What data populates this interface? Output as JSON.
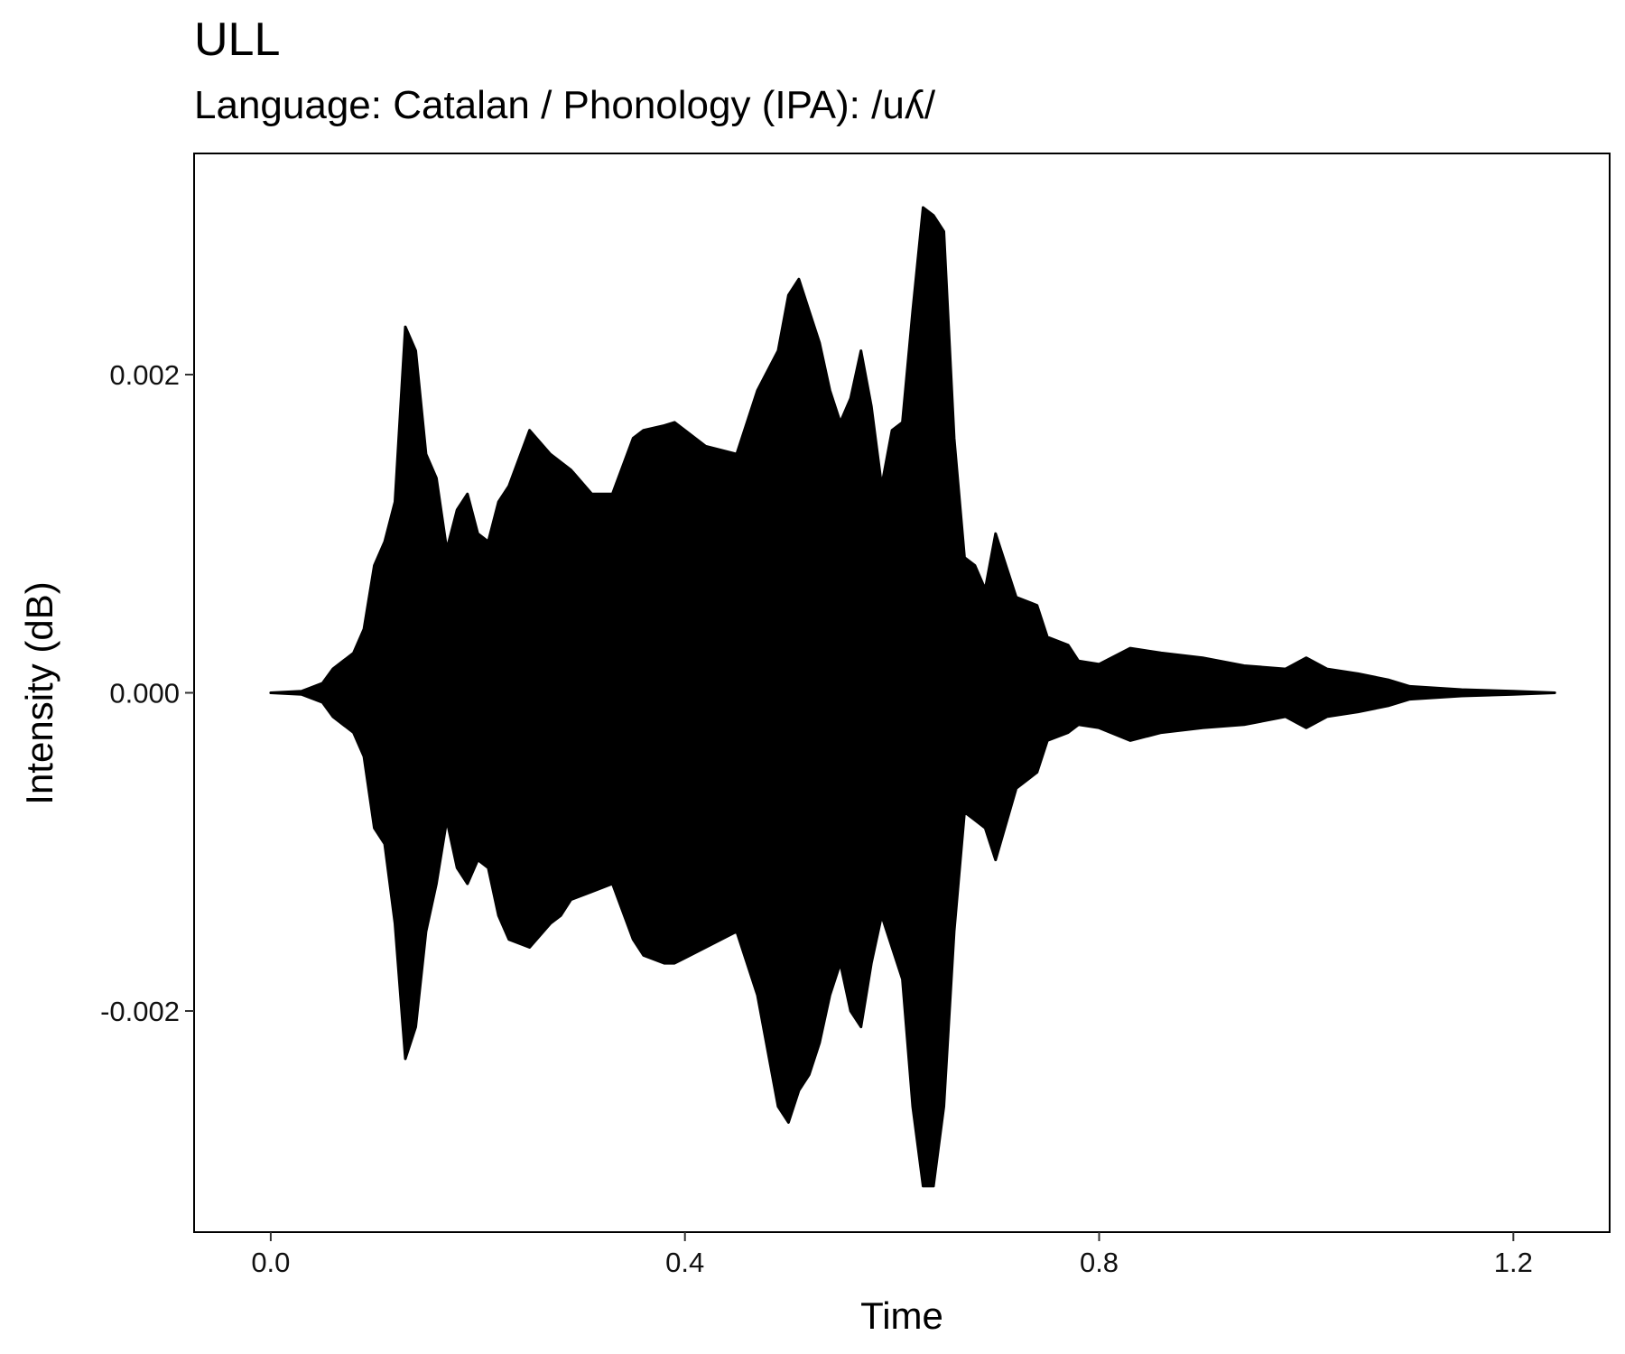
{
  "chart_data": {
    "type": "area",
    "title": "ULL",
    "subtitle": "Language: Catalan / Phonology (IPA): /uʎ/",
    "xlabel": "Time",
    "ylabel": "Intensity (dB)",
    "xlim": [
      -0.074,
      1.293
    ],
    "ylim": [
      -0.00339,
      0.00339
    ],
    "x_ticks": [
      0.0,
      0.4,
      0.8,
      1.2
    ],
    "x_tick_labels": [
      "0.0",
      "0.4",
      "0.8",
      "1.2"
    ],
    "y_ticks": [
      -0.002,
      0.0,
      0.002
    ],
    "y_tick_labels": [
      "-0.002",
      "0.000",
      "0.002"
    ],
    "grid": false,
    "legend": "none",
    "color": "#000000",
    "series": [
      {
        "x": [
          0.0,
          0.03,
          0.05,
          0.06,
          0.08,
          0.09,
          0.1,
          0.11,
          0.12,
          0.13,
          0.14,
          0.15,
          0.16,
          0.17,
          0.18,
          0.19,
          0.2,
          0.21,
          0.22,
          0.23,
          0.25,
          0.27,
          0.28,
          0.29,
          0.31,
          0.33,
          0.35,
          0.36,
          0.38,
          0.39,
          0.42,
          0.45,
          0.47,
          0.49,
          0.5,
          0.51,
          0.52,
          0.53,
          0.54,
          0.55,
          0.56,
          0.57,
          0.58,
          0.59,
          0.6,
          0.61,
          0.62,
          0.63,
          0.64,
          0.65,
          0.66,
          0.67,
          0.68,
          0.69,
          0.7,
          0.72,
          0.74,
          0.75,
          0.77,
          0.78,
          0.8,
          0.83,
          0.86,
          0.9,
          0.94,
          0.98,
          1.0,
          1.02,
          1.05,
          1.08,
          1.1,
          1.15,
          1.2,
          1.24
        ],
        "upper": [
          0.0,
          1e-05,
          6e-05,
          0.00015,
          0.00025,
          0.0004,
          0.0008,
          0.00095,
          0.0012,
          0.0023,
          0.00215,
          0.0015,
          0.00135,
          0.0009,
          0.00115,
          0.00125,
          0.001,
          0.00095,
          0.0012,
          0.0013,
          0.00165,
          0.0015,
          0.00145,
          0.0014,
          0.00125,
          0.00125,
          0.0016,
          0.00165,
          0.00168,
          0.0017,
          0.00155,
          0.0015,
          0.0019,
          0.00215,
          0.0025,
          0.0026,
          0.0024,
          0.0022,
          0.0019,
          0.0017,
          0.00185,
          0.00215,
          0.0018,
          0.0013,
          0.00165,
          0.0017,
          0.0024,
          0.00305,
          0.003,
          0.0029,
          0.0016,
          0.00085,
          0.0008,
          0.00065,
          0.001,
          0.0006,
          0.00055,
          0.00035,
          0.0003,
          0.0002,
          0.00018,
          0.00028,
          0.00025,
          0.00022,
          0.00017,
          0.00015,
          0.00022,
          0.00015,
          0.00012,
          8e-05,
          4e-05,
          2e-05,
          1e-05,
          0.0
        ],
        "lower": [
          0.0,
          -1e-05,
          -6e-05,
          -0.00015,
          -0.00025,
          -0.0004,
          -0.00085,
          -0.00095,
          -0.00145,
          -0.0023,
          -0.0021,
          -0.0015,
          -0.0012,
          -0.0008,
          -0.0011,
          -0.0012,
          -0.00105,
          -0.0011,
          -0.0014,
          -0.00155,
          -0.0016,
          -0.00145,
          -0.0014,
          -0.0013,
          -0.00125,
          -0.0012,
          -0.00155,
          -0.00165,
          -0.0017,
          -0.0017,
          -0.0016,
          -0.0015,
          -0.0019,
          -0.0026,
          -0.0027,
          -0.0025,
          -0.0024,
          -0.0022,
          -0.0019,
          -0.0017,
          -0.002,
          -0.0021,
          -0.0017,
          -0.0014,
          -0.0016,
          -0.0018,
          -0.0026,
          -0.0031,
          -0.0031,
          -0.0026,
          -0.0015,
          -0.00075,
          -0.0008,
          -0.00085,
          -0.00105,
          -0.0006,
          -0.0005,
          -0.0003,
          -0.00025,
          -0.0002,
          -0.00022,
          -0.0003,
          -0.00025,
          -0.00022,
          -0.0002,
          -0.00015,
          -0.00022,
          -0.00015,
          -0.00012,
          -8e-05,
          -4e-05,
          -2e-05,
          -1e-05,
          0.0
        ]
      }
    ]
  }
}
